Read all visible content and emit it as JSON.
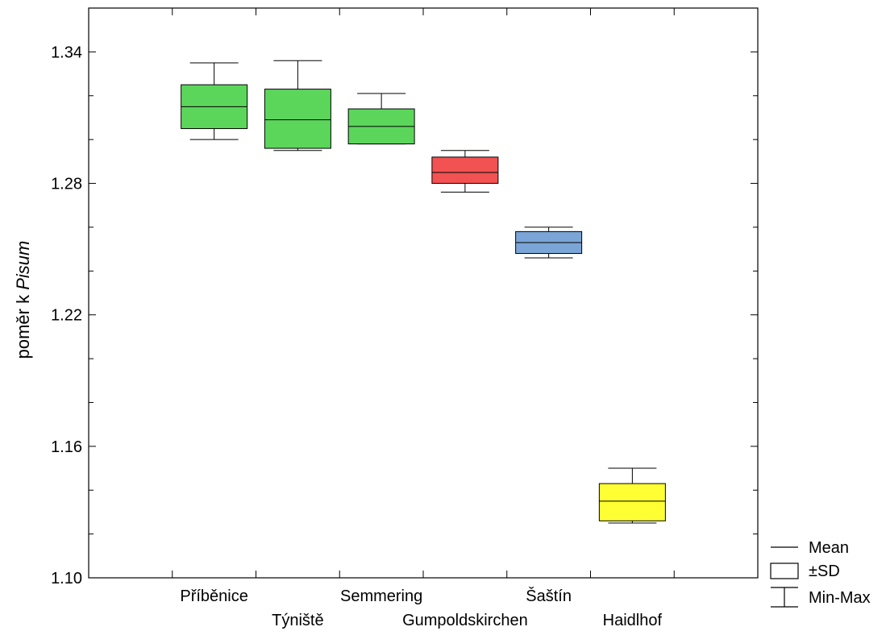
{
  "chart_data": {
    "type": "box",
    "ylabel_prefix": "poměr k ",
    "ylabel_italic": "Pisum",
    "ylim": [
      1.1,
      1.36
    ],
    "yticks": [
      1.1,
      1.16,
      1.22,
      1.28,
      1.34
    ],
    "ytick_labels": [
      "1.10",
      "1.16",
      "1.22",
      "1.28",
      "1.34"
    ],
    "categories": [
      "Příběnice",
      "Týniště",
      "Semmering",
      "Gumpoldskirchen",
      "Šaštín",
      "Haidlhof"
    ],
    "groups": [
      {
        "name": "Příběnice",
        "mean": 1.315,
        "sd_low": 1.305,
        "sd_high": 1.325,
        "min": 1.3,
        "max": 1.335,
        "color": "#5bd65b"
      },
      {
        "name": "Týniště",
        "mean": 1.309,
        "sd_low": 1.296,
        "sd_high": 1.323,
        "min": 1.295,
        "max": 1.336,
        "color": "#5bd65b"
      },
      {
        "name": "Semmering",
        "mean": 1.306,
        "sd_low": 1.298,
        "sd_high": 1.314,
        "min": 1.298,
        "max": 1.321,
        "color": "#5bd65b"
      },
      {
        "name": "Gumpoldskirchen",
        "mean": 1.285,
        "sd_low": 1.28,
        "sd_high": 1.292,
        "min": 1.276,
        "max": 1.295,
        "color": "#f25252"
      },
      {
        "name": "Šaštín",
        "mean": 1.253,
        "sd_low": 1.248,
        "sd_high": 1.258,
        "min": 1.246,
        "max": 1.26,
        "color": "#7aa5d6"
      },
      {
        "name": "Haidlhof",
        "mean": 1.135,
        "sd_low": 1.126,
        "sd_high": 1.143,
        "min": 1.125,
        "max": 1.15,
        "color": "#ffff33"
      }
    ],
    "legend": {
      "position": "bottom-right",
      "entries": [
        "Mean",
        "±SD",
        "Min-Max"
      ]
    },
    "grid": false
  }
}
